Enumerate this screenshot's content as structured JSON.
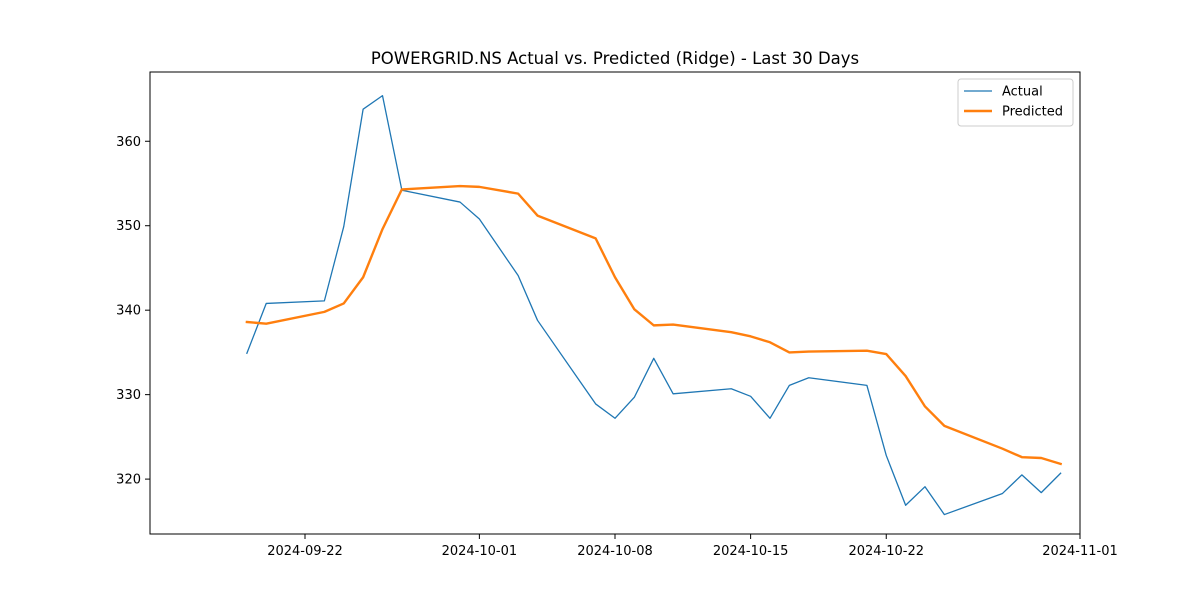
{
  "chart_data": {
    "type": "line",
    "title": "POWERGRID.NS Actual vs. Predicted (Ridge) - Last 30 Days",
    "xlabel": "",
    "ylabel": "",
    "xlim": [
      "2024-09-14",
      "2024-11-01"
    ],
    "ylim": [
      313.5,
      368.2
    ],
    "x_ticks": [
      "2024-09-22",
      "2024-10-01",
      "2024-10-08",
      "2024-10-15",
      "2024-10-22",
      "2024-11-01"
    ],
    "y_ticks": [
      320,
      330,
      340,
      350,
      360
    ],
    "grid": false,
    "legend_position": "top-right",
    "x": [
      "2024-09-19",
      "2024-09-20",
      "2024-09-23",
      "2024-09-24",
      "2024-09-25",
      "2024-09-26",
      "2024-09-27",
      "2024-09-30",
      "2024-10-01",
      "2024-10-03",
      "2024-10-04",
      "2024-10-07",
      "2024-10-08",
      "2024-10-09",
      "2024-10-10",
      "2024-10-11",
      "2024-10-14",
      "2024-10-15",
      "2024-10-16",
      "2024-10-17",
      "2024-10-18",
      "2024-10-21",
      "2024-10-22",
      "2024-10-23",
      "2024-10-24",
      "2024-10-25",
      "2024-10-28",
      "2024-10-29",
      "2024-10-30",
      "2024-10-31"
    ],
    "series": [
      {
        "name": "Actual",
        "color": "#1f77b4",
        "values": [
          334.9,
          340.8,
          341.1,
          349.9,
          363.8,
          365.4,
          354.2,
          352.8,
          350.8,
          344.1,
          338.8,
          328.9,
          327.2,
          329.7,
          334.3,
          330.1,
          330.7,
          329.8,
          327.2,
          331.1,
          332.0,
          331.1,
          322.8,
          316.9,
          319.1,
          315.8,
          318.3,
          320.5,
          318.4,
          320.7
        ]
      },
      {
        "name": "Predicted",
        "color": "#ff7f0e",
        "values": [
          338.6,
          338.4,
          339.8,
          340.8,
          343.9,
          349.6,
          354.3,
          354.7,
          354.6,
          353.8,
          351.2,
          348.5,
          343.9,
          340.1,
          338.2,
          338.3,
          337.4,
          336.9,
          336.2,
          335.0,
          335.1,
          335.2,
          334.8,
          332.2,
          328.6,
          326.3,
          323.6,
          322.6,
          322.5,
          321.8
        ]
      }
    ]
  }
}
